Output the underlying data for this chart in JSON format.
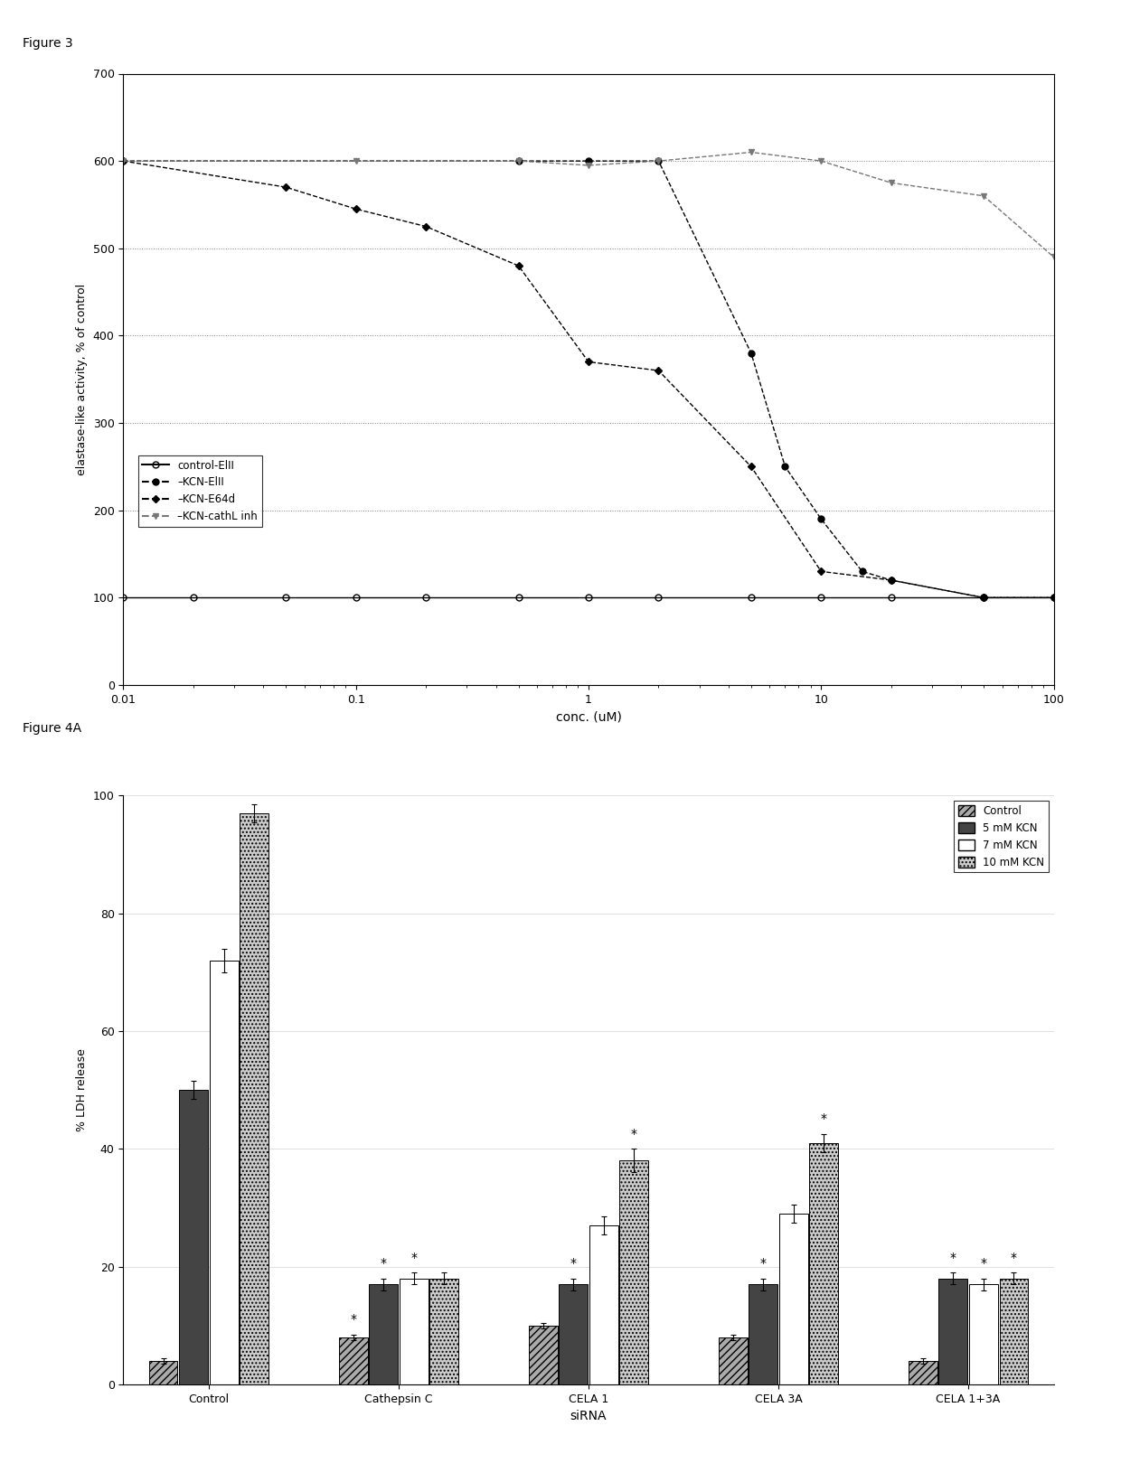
{
  "fig3": {
    "title": "Figure 3",
    "xlabel": "conc. (uM)",
    "ylabel": "elastase-like activity, % of control",
    "xlim": [
      0.01,
      100
    ],
    "ylim": [
      0,
      700
    ],
    "yticks": [
      0,
      100,
      200,
      300,
      400,
      500,
      600,
      700
    ],
    "series": {
      "control_EIII": {
        "label": "control-ElII",
        "x": [
          0.01,
          0.02,
          0.05,
          0.1,
          0.2,
          0.5,
          1.0,
          2.0,
          5.0,
          10.0,
          20.0,
          50.0,
          100.0
        ],
        "y": [
          100,
          100,
          100,
          100,
          100,
          100,
          100,
          100,
          100,
          100,
          100,
          100,
          100
        ],
        "color": "#000000",
        "linestyle": "-",
        "marker": "o",
        "fillstyle": "none",
        "markersize": 5
      },
      "KCN_EIII": {
        "label": "KCN-ElII",
        "x": [
          0.01,
          0.5,
          1.0,
          2.0,
          5.0,
          7.0,
          10.0,
          15.0,
          20.0,
          50.0,
          100.0
        ],
        "y": [
          600,
          600,
          600,
          600,
          380,
          250,
          190,
          130,
          120,
          100,
          100
        ],
        "color": "#000000",
        "linestyle": "--",
        "marker": "o",
        "fillstyle": "full",
        "markersize": 5
      },
      "KCN_E64d": {
        "label": "KCN-E64d",
        "x": [
          0.01,
          0.05,
          0.1,
          0.2,
          0.5,
          1.0,
          2.0,
          5.0,
          10.0,
          20.0,
          50.0,
          100.0
        ],
        "y": [
          600,
          570,
          545,
          525,
          480,
          370,
          360,
          250,
          130,
          120,
          100,
          100
        ],
        "color": "#000000",
        "linestyle": "--",
        "marker": "D",
        "fillstyle": "full",
        "markersize": 4
      },
      "KCN_cathL": {
        "label": "KCN-cathL inh",
        "x": [
          0.01,
          0.1,
          0.5,
          1.0,
          2.0,
          5.0,
          10.0,
          20.0,
          50.0,
          100.0
        ],
        "y": [
          600,
          600,
          600,
          595,
          600,
          610,
          600,
          575,
          560,
          490
        ],
        "color": "#777777",
        "linestyle": "--",
        "marker": "v",
        "fillstyle": "full",
        "markersize": 5
      }
    }
  },
  "fig4a": {
    "title": "Figure 4A",
    "xlabel": "siRNA",
    "ylabel": "% LDH release",
    "ylim": [
      0,
      100
    ],
    "yticks": [
      0,
      20,
      40,
      60,
      80,
      100
    ],
    "groups": [
      "Control",
      "Cathepsin C",
      "CELA 1",
      "CELA 3A",
      "CELA 1+3A"
    ],
    "series_labels": [
      "Control",
      "5 mM KCN",
      "7 mM KCN",
      "10 mM KCN"
    ],
    "bar_colors": [
      "#aaaaaa",
      "#444444",
      "#ffffff",
      "#cccccc"
    ],
    "bar_hatches": [
      "////",
      "",
      "",
      "...."
    ],
    "data": {
      "Control": [
        4,
        50,
        72,
        97
      ],
      "Cathepsin C": [
        8,
        17,
        18,
        18
      ],
      "CELA 1": [
        10,
        17,
        27,
        38
      ],
      "CELA 3A": [
        8,
        17,
        29,
        41
      ],
      "CELA 1+3A": [
        4,
        18,
        17,
        18
      ]
    },
    "errors": {
      "Control": [
        0.5,
        1.5,
        2.0,
        1.5
      ],
      "Cathepsin C": [
        0.5,
        1.0,
        1.0,
        1.0
      ],
      "CELA 1": [
        0.5,
        1.0,
        1.5,
        2.0
      ],
      "CELA 3A": [
        0.5,
        1.0,
        1.5,
        1.5
      ],
      "CELA 1+3A": [
        0.5,
        1.0,
        1.0,
        1.0
      ]
    },
    "significance": {
      "Cathepsin C": [
        true,
        true,
        true,
        false
      ],
      "CELA 1": [
        false,
        true,
        false,
        true
      ],
      "CELA 3A": [
        false,
        true,
        false,
        true
      ],
      "CELA 1+3A": [
        false,
        true,
        true,
        true
      ]
    }
  }
}
